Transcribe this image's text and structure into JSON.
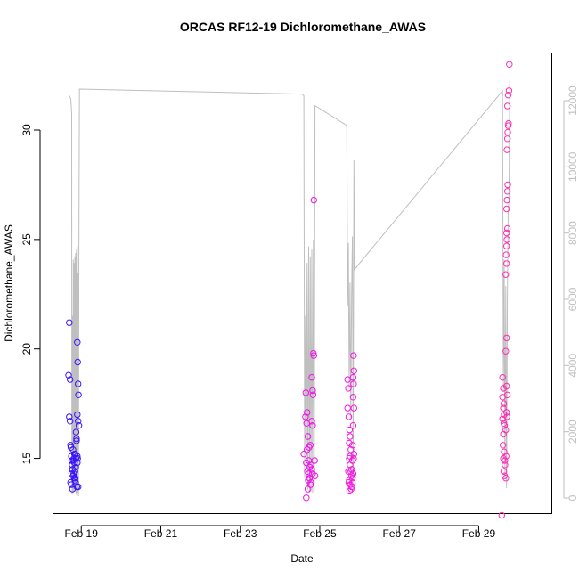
{
  "chart_data": {
    "type": "scatter",
    "title": "ORCAS RF12-19 Dichloromethane_AWAS",
    "xlabel": "Date",
    "ylabel": "Dichloromethane_AWAS",
    "x_unit": "days (February 2016)",
    "xlim": [
      18.3,
      30.85
    ],
    "ylim": [
      12.5,
      33.5
    ],
    "x_ticks": [
      {
        "value": 19,
        "label": "Feb 19"
      },
      {
        "value": 21,
        "label": "Feb 21"
      },
      {
        "value": 23,
        "label": "Feb 23"
      },
      {
        "value": 25,
        "label": "Feb 25"
      },
      {
        "value": 27,
        "label": "Feb 27"
      },
      {
        "value": 29,
        "label": "Feb 29"
      }
    ],
    "y_ticks": [
      15,
      20,
      25,
      30
    ],
    "y2_ticks": [
      0,
      2000,
      4000,
      6000,
      8000,
      10000,
      12000
    ],
    "y2lim": [
      0,
      12000
    ],
    "grid": false,
    "colors": {
      "axis": "#000000",
      "altitude_line": "#bfbfbf",
      "point_start": "#3311ff",
      "point_mid": "#ee11ee",
      "point_end": "#ff2eb4"
    },
    "series": [
      {
        "name": "",
        "role": "dichloromethane_points",
        "points": [
          [
            18.7,
            21.2
          ],
          [
            18.68,
            18.8
          ],
          [
            18.72,
            18.6
          ],
          [
            18.7,
            16.9
          ],
          [
            18.72,
            16.7
          ],
          [
            18.73,
            15.6
          ],
          [
            18.74,
            15.5
          ],
          [
            18.75,
            15.1
          ],
          [
            18.76,
            14.9
          ],
          [
            18.77,
            14.7
          ],
          [
            18.78,
            14.5
          ],
          [
            18.76,
            14.3
          ],
          [
            18.8,
            14.2
          ],
          [
            18.73,
            13.9
          ],
          [
            18.75,
            13.8
          ],
          [
            18.78,
            13.6
          ],
          [
            18.82,
            15.0
          ],
          [
            18.83,
            14.8
          ],
          [
            18.84,
            14.4
          ],
          [
            18.85,
            15.2
          ],
          [
            18.86,
            14.6
          ],
          [
            18.87,
            16.2
          ],
          [
            18.88,
            15.8
          ],
          [
            18.89,
            13.7
          ],
          [
            18.9,
            20.3
          ],
          [
            18.91,
            19.4
          ],
          [
            18.92,
            18.4
          ],
          [
            18.93,
            17.9
          ],
          [
            18.9,
            17.0
          ],
          [
            18.92,
            16.7
          ],
          [
            18.94,
            16.5
          ],
          [
            18.88,
            15.9
          ],
          [
            18.9,
            15.1
          ],
          [
            18.82,
            14.1
          ],
          [
            18.85,
            14.1
          ],
          [
            18.9,
            14.8
          ],
          [
            18.91,
            15.0
          ],
          [
            18.79,
            15.4
          ],
          [
            18.8,
            14.9
          ],
          [
            18.81,
            14.3
          ],
          [
            18.83,
            15.2
          ],
          [
            18.86,
            13.9
          ],
          [
            18.87,
            15.0
          ],
          [
            18.84,
            14.0
          ],
          [
            18.92,
            13.7
          ],
          [
            24.65,
            18.0
          ],
          [
            24.68,
            17.1
          ],
          [
            24.64,
            16.9
          ],
          [
            24.67,
            16.6
          ],
          [
            24.7,
            16.0
          ],
          [
            24.6,
            15.2
          ],
          [
            24.66,
            14.8
          ],
          [
            24.69,
            14.4
          ],
          [
            24.72,
            14.3
          ],
          [
            24.74,
            14.1
          ],
          [
            24.7,
            13.6
          ],
          [
            24.66,
            13.2
          ],
          [
            24.71,
            14.0
          ],
          [
            24.73,
            15.5
          ],
          [
            24.76,
            15.6
          ],
          [
            24.78,
            14.7
          ],
          [
            24.8,
            14.5
          ],
          [
            24.82,
            14.3
          ],
          [
            24.78,
            13.9
          ],
          [
            24.8,
            16.7
          ],
          [
            24.82,
            16.5
          ],
          [
            24.83,
            17.9
          ],
          [
            24.82,
            18.1
          ],
          [
            24.8,
            18.7
          ],
          [
            24.84,
            19.8
          ],
          [
            24.85,
            19.7
          ],
          [
            24.87,
            14.9
          ],
          [
            24.88,
            14.2
          ],
          [
            24.85,
            26.8
          ],
          [
            24.75,
            14.6
          ],
          [
            24.77,
            13.8
          ],
          [
            24.68,
            15.4
          ],
          [
            24.72,
            14.9
          ],
          [
            25.7,
            18.6
          ],
          [
            25.72,
            18.2
          ],
          [
            25.7,
            17.3
          ],
          [
            25.73,
            16.9
          ],
          [
            25.75,
            16.3
          ],
          [
            25.76,
            16.0
          ],
          [
            25.74,
            15.7
          ],
          [
            25.78,
            15.4
          ],
          [
            25.74,
            15.0
          ],
          [
            25.76,
            14.7
          ],
          [
            25.72,
            14.4
          ],
          [
            25.8,
            14.2
          ],
          [
            25.74,
            14.0
          ],
          [
            25.73,
            13.9
          ],
          [
            25.77,
            13.8
          ],
          [
            25.79,
            13.6
          ],
          [
            25.75,
            13.5
          ],
          [
            25.8,
            13.7
          ],
          [
            25.82,
            14.1
          ],
          [
            25.84,
            14.3
          ],
          [
            25.8,
            14.5
          ],
          [
            25.82,
            14.9
          ],
          [
            25.85,
            15.0
          ],
          [
            25.86,
            15.2
          ],
          [
            25.82,
            15.6
          ],
          [
            25.84,
            16.5
          ],
          [
            25.86,
            17.3
          ],
          [
            25.84,
            17.8
          ],
          [
            25.85,
            18.4
          ],
          [
            25.84,
            18.7
          ],
          [
            25.86,
            19.0
          ],
          [
            25.85,
            19.7
          ],
          [
            25.78,
            14.4
          ],
          [
            25.76,
            15.1
          ],
          [
            25.82,
            13.9
          ],
          [
            29.58,
            12.4
          ],
          [
            29.6,
            18.7
          ],
          [
            29.62,
            18.2
          ],
          [
            29.6,
            17.8
          ],
          [
            29.63,
            17.5
          ],
          [
            29.62,
            17.3
          ],
          [
            29.64,
            17.0
          ],
          [
            29.6,
            16.8
          ],
          [
            29.63,
            16.6
          ],
          [
            29.65,
            16.5
          ],
          [
            29.62,
            16.1
          ],
          [
            29.61,
            15.6
          ],
          [
            29.64,
            15.3
          ],
          [
            29.62,
            15.0
          ],
          [
            29.66,
            14.7
          ],
          [
            29.63,
            14.4
          ],
          [
            29.65,
            14.2
          ],
          [
            29.68,
            14.1
          ],
          [
            29.68,
            16.3
          ],
          [
            29.7,
            17.1
          ],
          [
            29.72,
            17.9
          ],
          [
            29.7,
            18.3
          ],
          [
            29.68,
            19.9
          ],
          [
            29.7,
            20.5
          ],
          [
            29.68,
            23.4
          ],
          [
            29.7,
            23.9
          ],
          [
            29.69,
            24.3
          ],
          [
            29.7,
            24.7
          ],
          [
            29.71,
            25.0
          ],
          [
            29.7,
            25.3
          ],
          [
            29.72,
            25.5
          ],
          [
            29.7,
            26.4
          ],
          [
            29.71,
            26.8
          ],
          [
            29.72,
            27.2
          ],
          [
            29.73,
            27.5
          ],
          [
            29.71,
            29.1
          ],
          [
            29.72,
            29.6
          ],
          [
            29.73,
            29.9
          ],
          [
            29.74,
            30.2
          ],
          [
            29.75,
            30.3
          ],
          [
            29.72,
            31.1
          ],
          [
            29.74,
            31.6
          ],
          [
            29.76,
            31.8
          ],
          [
            29.77,
            33.0
          ],
          [
            29.66,
            14.9
          ],
          [
            29.69,
            15.1
          ],
          [
            29.71,
            16.9
          ]
        ]
      },
      {
        "name": "",
        "role": "altitude_trace",
        "axis": "right",
        "points": [
          [
            18.7,
            12150
          ],
          [
            18.74,
            12050
          ],
          [
            18.76,
            11600
          ],
          [
            18.765,
            1800
          ],
          [
            18.77,
            100
          ],
          [
            18.78,
            5500
          ],
          [
            18.79,
            150
          ],
          [
            18.8,
            7200
          ],
          [
            18.81,
            200
          ],
          [
            18.82,
            7100
          ],
          [
            18.83,
            300
          ],
          [
            18.84,
            7300
          ],
          [
            18.85,
            200
          ],
          [
            18.86,
            7400
          ],
          [
            18.87,
            100
          ],
          [
            18.88,
            7500
          ],
          [
            18.89,
            300
          ],
          [
            18.9,
            7600
          ],
          [
            18.91,
            150
          ],
          [
            18.92,
            6800
          ],
          [
            18.93,
            50
          ],
          [
            18.94,
            7600
          ],
          [
            18.955,
            12350
          ],
          [
            24.55,
            12200
          ],
          [
            24.6,
            12150
          ],
          [
            24.62,
            600
          ],
          [
            24.64,
            5500
          ],
          [
            24.66,
            200
          ],
          [
            24.68,
            7100
          ],
          [
            24.7,
            250
          ],
          [
            24.72,
            7600
          ],
          [
            24.74,
            150
          ],
          [
            24.76,
            7300
          ],
          [
            24.78,
            200
          ],
          [
            24.8,
            7500
          ],
          [
            24.82,
            150
          ],
          [
            24.84,
            7800
          ],
          [
            24.86,
            200
          ],
          [
            24.88,
            11850
          ],
          [
            25.68,
            11250
          ],
          [
            25.7,
            5800
          ],
          [
            25.72,
            7700
          ],
          [
            25.74,
            3300
          ],
          [
            25.76,
            6500
          ],
          [
            25.78,
            2400
          ],
          [
            25.8,
            6200
          ],
          [
            25.82,
            7900
          ],
          [
            25.84,
            600
          ],
          [
            25.86,
            10200
          ],
          [
            25.87,
            6900
          ],
          [
            29.6,
            12300
          ],
          [
            29.62,
            3200
          ],
          [
            29.64,
            7200
          ],
          [
            29.66,
            600
          ],
          [
            29.68,
            6400
          ],
          [
            29.7,
            300
          ],
          [
            29.72,
            6000
          ],
          [
            29.74,
            8600
          ],
          [
            29.76,
            9000
          ],
          [
            29.78,
            12600
          ]
        ]
      }
    ]
  }
}
